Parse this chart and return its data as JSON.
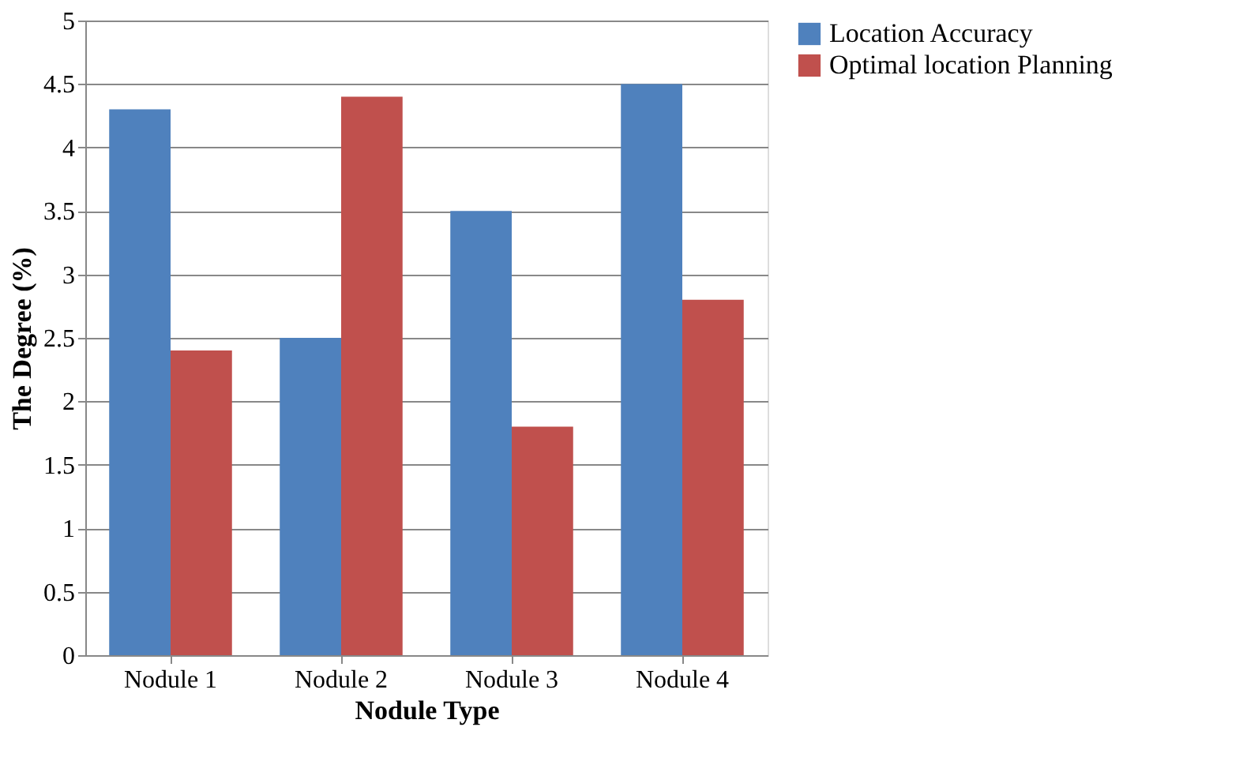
{
  "chart_data": {
    "type": "bar",
    "xlabel": "Nodule Type",
    "ylabel": "The Degree (%)",
    "categories": [
      "Nodule 1",
      "Nodule 2",
      "Nodule 3",
      "Nodule 4"
    ],
    "series": [
      {
        "name": "Location Accuracy",
        "color": "#4f81bd",
        "values": [
          4.3,
          2.5,
          3.5,
          4.5
        ]
      },
      {
        "name": "Optimal location Planning",
        "color": "#c0504d",
        "values": [
          2.4,
          4.4,
          1.8,
          2.8
        ]
      }
    ],
    "ylim": [
      0,
      5
    ],
    "yticks": [
      0,
      0.5,
      1,
      1.5,
      2,
      2.5,
      3,
      3.5,
      4,
      4.5,
      5
    ],
    "grid": "y",
    "legend": "right"
  }
}
